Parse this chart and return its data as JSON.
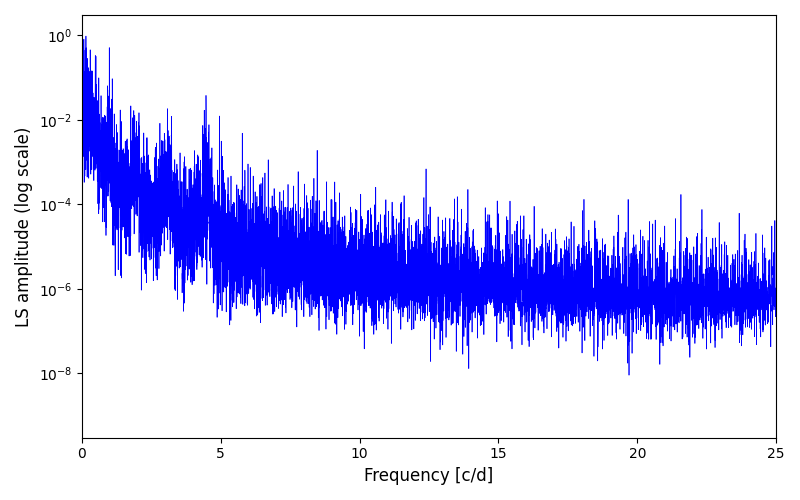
{
  "title": "",
  "xlabel": "Frequency [c/d]",
  "ylabel": "LS amplitude (log scale)",
  "xlim": [
    0,
    25
  ],
  "ylim_log": [
    3e-10,
    3
  ],
  "line_color": "#0000ff",
  "line_width": 0.5,
  "yscale": "log",
  "figsize": [
    8.0,
    5.0
  ],
  "dpi": 100,
  "seed": 7,
  "n_points": 8000,
  "freq_max": 25.0,
  "background_color": "#ffffff",
  "yticks_major": [
    1e-08,
    1e-06,
    0.0001,
    0.01,
    1.0
  ],
  "xticks_major": [
    0,
    5,
    10,
    15,
    20,
    25
  ]
}
